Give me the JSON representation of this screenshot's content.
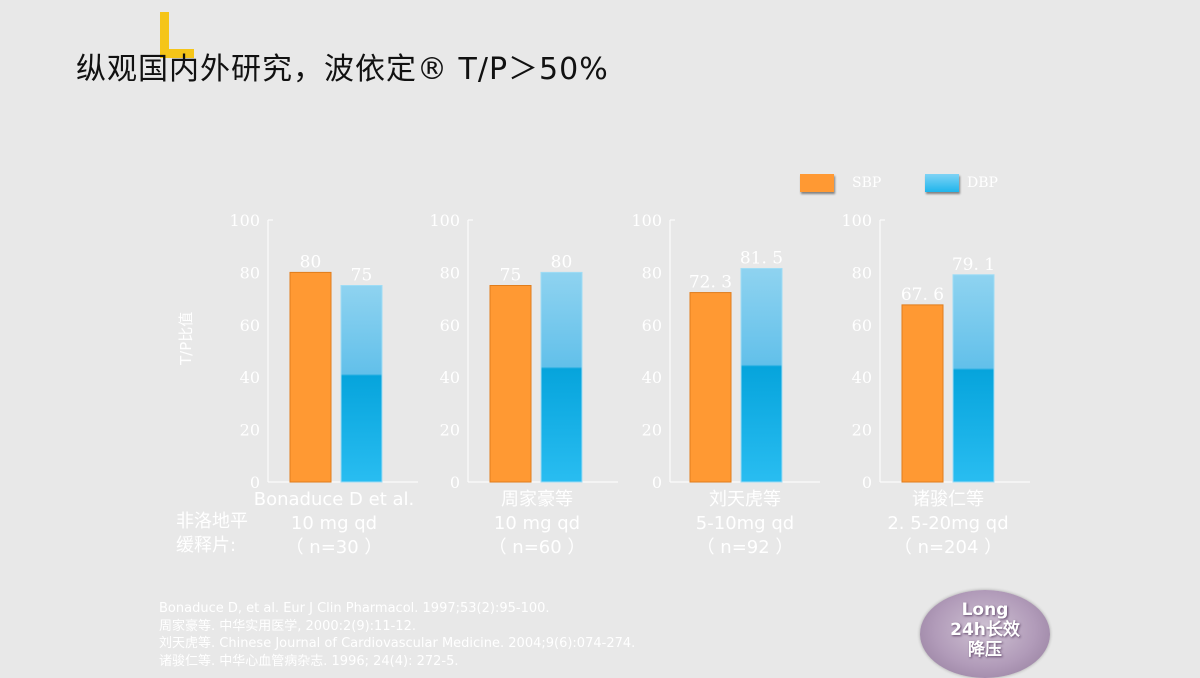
{
  "title": "纵观国内外研究，波依定® T/P＞50%",
  "legend": {
    "sbp": "SBP",
    "dbp": "DBP"
  },
  "axis_title": "T/P比值",
  "drug_label": [
    "非洛地平",
    "缓释片:"
  ],
  "colors": {
    "sbp": "#ff9933",
    "dbp": "#1fb5ec",
    "axis_text": "#ffffff"
  },
  "chart_data": {
    "type": "bar",
    "ylabel": "T/P比值",
    "ylim": [
      0,
      100
    ],
    "yticks": [
      0,
      20,
      40,
      60,
      80,
      100
    ],
    "series_names": [
      "SBP",
      "DBP"
    ],
    "panels": [
      {
        "study": [
          "Bonaduce D et al.",
          "10 mg qd",
          "（ n=30 ）"
        ],
        "sbp": 80,
        "dbp": 75,
        "sbp_label": "80",
        "dbp_label": "75"
      },
      {
        "study": [
          "周家豪等",
          "10 mg qd",
          "（ n=60 ）"
        ],
        "sbp": 75,
        "dbp": 80,
        "sbp_label": "75",
        "dbp_label": "80"
      },
      {
        "study": [
          "刘天虎等",
          "5-10mg qd",
          "（ n=92 ）"
        ],
        "sbp": 72.3,
        "dbp": 81.5,
        "sbp_label": "72. 3",
        "dbp_label": "81. 5"
      },
      {
        "study": [
          "诸骏仁等",
          "2. 5-20mg qd",
          "（ n=204 ）"
        ],
        "sbp": 67.6,
        "dbp": 79.1,
        "sbp_label": "67. 6",
        "dbp_label": "79. 1"
      }
    ]
  },
  "references": [
    "Bonaduce D, et al. Eur J Clin Pharmacol. 1997;53(2):95-100.",
    "周家豪等. 中华实用医学, 2000:2(9):11-12.",
    "刘天虎等. Chinese Journal of Cardiovascular Medicine. 2004;9(6):074-274.",
    "诸骏仁等. 中华心血管病杂志. 1996; 24(4): 272-5."
  ],
  "badge": {
    "line1": "Long",
    "line2": "24h长效",
    "line3": "降压"
  }
}
